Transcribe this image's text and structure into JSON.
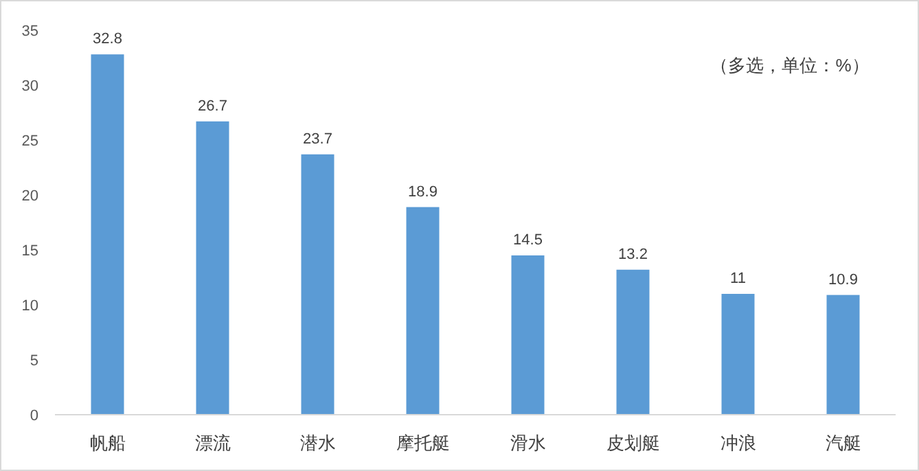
{
  "chart_data": {
    "type": "bar",
    "categories": [
      "帆船",
      "漂流",
      "潜水",
      "摩托艇",
      "滑水",
      "皮划艇",
      "冲浪",
      "汽艇"
    ],
    "values": [
      32.8,
      26.7,
      23.7,
      18.9,
      14.5,
      13.2,
      11,
      10.9
    ],
    "color": "#5b9bd5",
    "ylim": [
      0,
      35
    ],
    "yticks": [
      0,
      5,
      10,
      15,
      20,
      25,
      30,
      35
    ],
    "data_labels": true,
    "annotations": [
      "（多选，单位：%）"
    ]
  }
}
